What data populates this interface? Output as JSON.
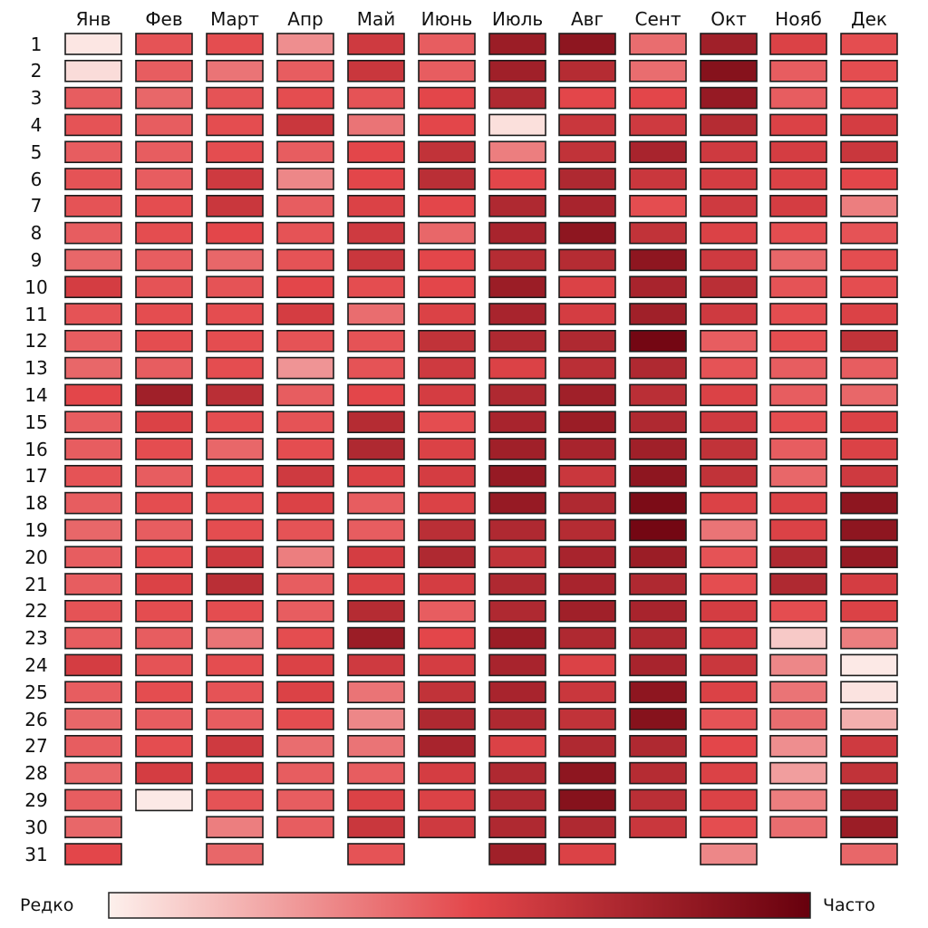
{
  "chart_data": {
    "type": "heatmap",
    "title": "",
    "xlabel": "",
    "ylabel": "",
    "months": [
      "Янв",
      "Фев",
      "Март",
      "Апр",
      "Май",
      "Июнь",
      "Июль",
      "Авг",
      "Сент",
      "Окт",
      "Нояб",
      "Дек"
    ],
    "days": [
      "1",
      "2",
      "3",
      "4",
      "5",
      "6",
      "7",
      "8",
      "9",
      "10",
      "11",
      "12",
      "13",
      "14",
      "15",
      "16",
      "17",
      "18",
      "19",
      "20",
      "21",
      "22",
      "23",
      "24",
      "25",
      "26",
      "27",
      "28",
      "29",
      "30",
      "31"
    ],
    "value_range": [
      0,
      1
    ],
    "colorbar": {
      "low_label": "Редко",
      "high_label": "Часто",
      "low_color": "#fdf0ec",
      "mid_color": "#e3464a",
      "high_color": "#67000d"
    },
    "values": [
      [
        0.03,
        0.48,
        0.5,
        0.3,
        0.6,
        0.45,
        0.8,
        0.85,
        0.4,
        0.78,
        0.55,
        0.5
      ],
      [
        0.06,
        0.45,
        0.38,
        0.45,
        0.62,
        0.45,
        0.78,
        0.7,
        0.4,
        0.88,
        0.45,
        0.5
      ],
      [
        0.45,
        0.42,
        0.48,
        0.5,
        0.48,
        0.52,
        0.72,
        0.52,
        0.52,
        0.82,
        0.45,
        0.5
      ],
      [
        0.48,
        0.45,
        0.5,
        0.62,
        0.38,
        0.52,
        0.05,
        0.62,
        0.6,
        0.7,
        0.55,
        0.58
      ],
      [
        0.45,
        0.45,
        0.5,
        0.45,
        0.52,
        0.65,
        0.35,
        0.65,
        0.75,
        0.6,
        0.58,
        0.62
      ],
      [
        0.48,
        0.45,
        0.6,
        0.32,
        0.52,
        0.68,
        0.52,
        0.72,
        0.62,
        0.58,
        0.55,
        0.52
      ],
      [
        0.48,
        0.5,
        0.62,
        0.45,
        0.55,
        0.52,
        0.72,
        0.75,
        0.5,
        0.6,
        0.58,
        0.35
      ],
      [
        0.45,
        0.5,
        0.52,
        0.48,
        0.6,
        0.42,
        0.75,
        0.85,
        0.65,
        0.55,
        0.5,
        0.48
      ],
      [
        0.42,
        0.45,
        0.42,
        0.48,
        0.62,
        0.52,
        0.7,
        0.7,
        0.85,
        0.6,
        0.42,
        0.5
      ],
      [
        0.58,
        0.48,
        0.48,
        0.52,
        0.5,
        0.52,
        0.8,
        0.55,
        0.75,
        0.68,
        0.48,
        0.5
      ],
      [
        0.48,
        0.5,
        0.5,
        0.58,
        0.4,
        0.55,
        0.75,
        0.58,
        0.78,
        0.6,
        0.5,
        0.55
      ],
      [
        0.45,
        0.5,
        0.5,
        0.48,
        0.48,
        0.65,
        0.72,
        0.72,
        0.95,
        0.45,
        0.5,
        0.65
      ],
      [
        0.42,
        0.45,
        0.5,
        0.28,
        0.48,
        0.6,
        0.55,
        0.68,
        0.72,
        0.48,
        0.45,
        0.45
      ],
      [
        0.52,
        0.78,
        0.68,
        0.45,
        0.52,
        0.58,
        0.72,
        0.78,
        0.68,
        0.55,
        0.45,
        0.42
      ],
      [
        0.45,
        0.55,
        0.5,
        0.48,
        0.7,
        0.5,
        0.75,
        0.8,
        0.72,
        0.6,
        0.5,
        0.55
      ],
      [
        0.45,
        0.5,
        0.42,
        0.5,
        0.72,
        0.55,
        0.78,
        0.75,
        0.78,
        0.65,
        0.45,
        0.55
      ],
      [
        0.48,
        0.45,
        0.5,
        0.6,
        0.55,
        0.58,
        0.82,
        0.62,
        0.85,
        0.65,
        0.42,
        0.6
      ],
      [
        0.45,
        0.5,
        0.5,
        0.55,
        0.45,
        0.55,
        0.82,
        0.72,
        0.92,
        0.55,
        0.55,
        0.85
      ],
      [
        0.42,
        0.45,
        0.5,
        0.48,
        0.45,
        0.68,
        0.72,
        0.7,
        0.95,
        0.38,
        0.55,
        0.85
      ],
      [
        0.45,
        0.5,
        0.6,
        0.35,
        0.58,
        0.72,
        0.65,
        0.75,
        0.8,
        0.48,
        0.72,
        0.82
      ],
      [
        0.45,
        0.55,
        0.68,
        0.45,
        0.55,
        0.58,
        0.72,
        0.75,
        0.72,
        0.5,
        0.72,
        0.58
      ],
      [
        0.48,
        0.5,
        0.5,
        0.45,
        0.7,
        0.45,
        0.72,
        0.78,
        0.75,
        0.58,
        0.5,
        0.55
      ],
      [
        0.45,
        0.45,
        0.38,
        0.5,
        0.8,
        0.52,
        0.8,
        0.72,
        0.72,
        0.58,
        0.12,
        0.35
      ],
      [
        0.58,
        0.48,
        0.5,
        0.55,
        0.6,
        0.58,
        0.75,
        0.55,
        0.75,
        0.62,
        0.32,
        0.02
      ],
      [
        0.45,
        0.5,
        0.48,
        0.55,
        0.38,
        0.65,
        0.75,
        0.62,
        0.85,
        0.55,
        0.38,
        0.04
      ],
      [
        0.42,
        0.45,
        0.45,
        0.5,
        0.32,
        0.72,
        0.72,
        0.65,
        0.88,
        0.48,
        0.4,
        0.2
      ],
      [
        0.45,
        0.5,
        0.6,
        0.4,
        0.38,
        0.75,
        0.55,
        0.72,
        0.72,
        0.52,
        0.3,
        0.6
      ],
      [
        0.42,
        0.58,
        0.58,
        0.45,
        0.45,
        0.58,
        0.72,
        0.85,
        0.7,
        0.55,
        0.25,
        0.65
      ],
      [
        0.45,
        0.02,
        0.48,
        0.45,
        0.55,
        0.55,
        0.72,
        0.88,
        0.68,
        0.55,
        0.35,
        0.75
      ],
      [
        0.42,
        null,
        0.35,
        0.45,
        0.62,
        0.6,
        0.72,
        0.72,
        0.62,
        0.5,
        0.4,
        0.8
      ],
      [
        0.52,
        null,
        0.42,
        null,
        0.48,
        null,
        0.78,
        0.55,
        null,
        0.32,
        null,
        0.42
      ]
    ]
  }
}
